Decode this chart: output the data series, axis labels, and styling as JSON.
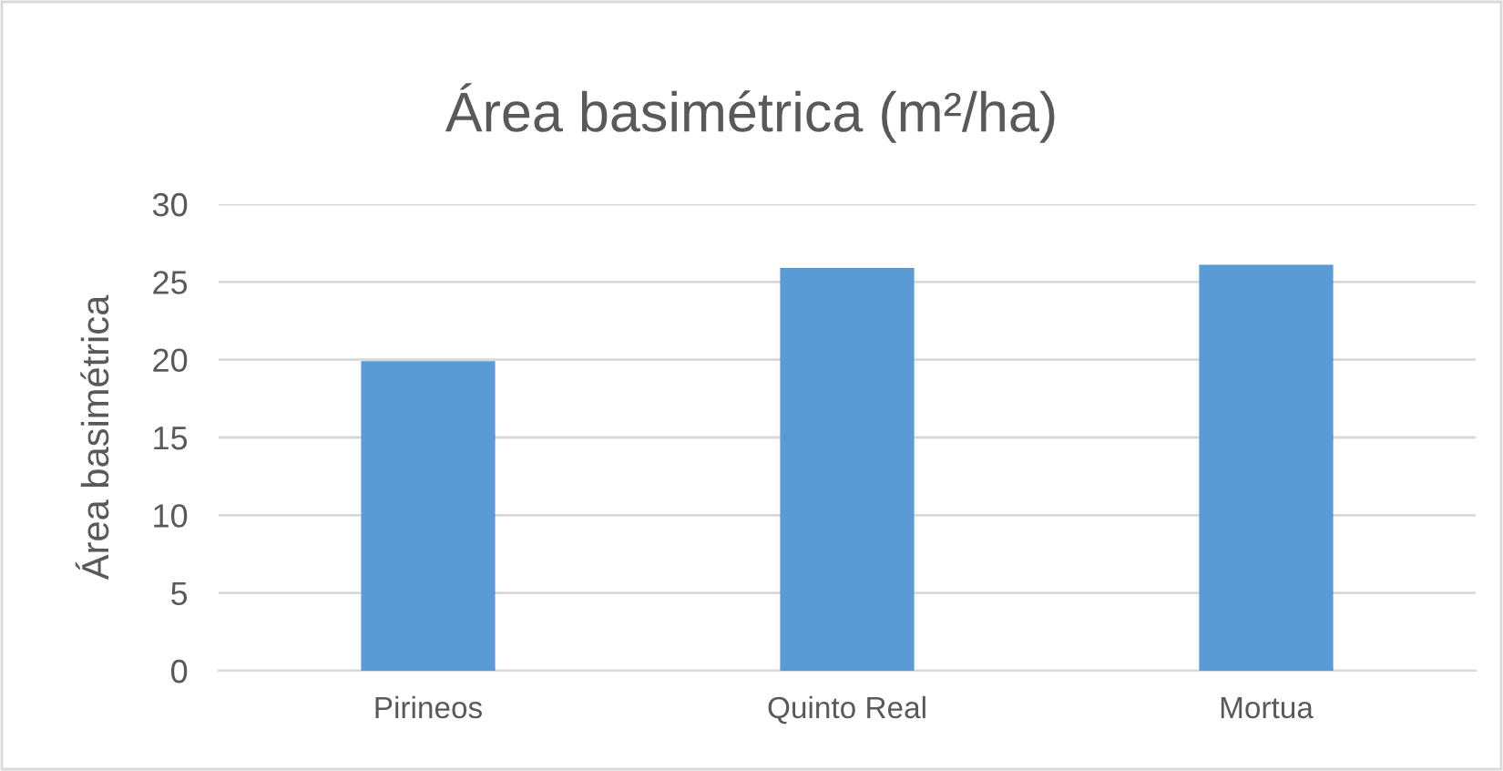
{
  "chart_data": {
    "type": "bar",
    "title": "Área basimétrica (m²/ha)",
    "ylabel": "Área basimétrica",
    "categories": [
      "Pirineos",
      "Quinto Real",
      "Mortua"
    ],
    "values": [
      19.9,
      25.9,
      26.1
    ],
    "color": "#5b9bd5",
    "ylim": [
      0,
      30
    ],
    "yticks": [
      0,
      5,
      10,
      15,
      20,
      25,
      30
    ],
    "grid": "y"
  }
}
